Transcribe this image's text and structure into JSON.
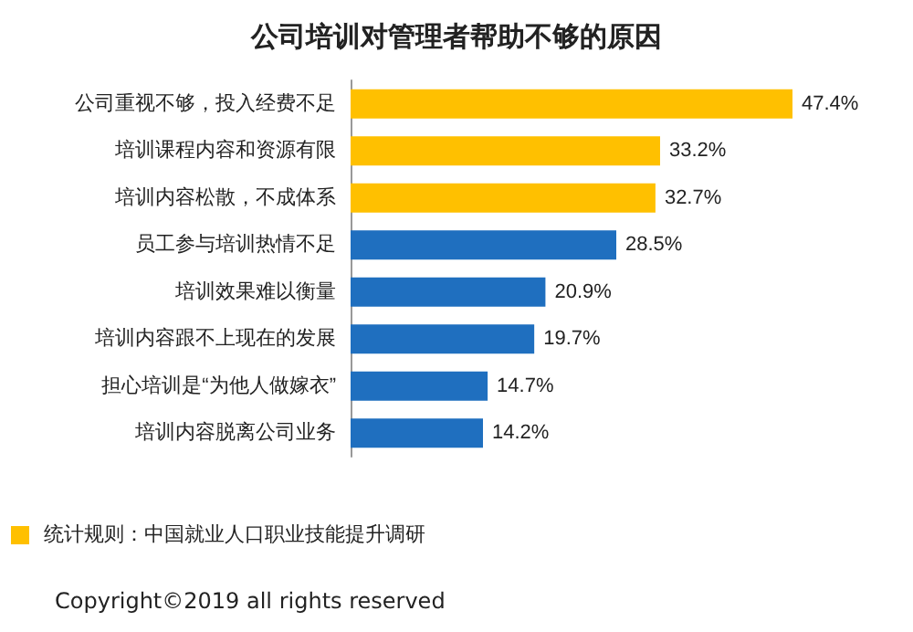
{
  "chart_data": {
    "type": "bar",
    "orientation": "horizontal",
    "title": "公司培训对管理者帮助不够的原因",
    "categories": [
      "公司重视不够，投入经费不足",
      "培训课程内容和资源有限",
      "培训内容松散，不成体系",
      "员工参与培训热情不足",
      "培训效果难以衡量",
      "培训内容跟不上现在的发展",
      "担心培训是“为他人做嫁衣”",
      "培训内容脱离公司业务"
    ],
    "values": [
      47.4,
      33.2,
      32.7,
      28.5,
      20.9,
      19.7,
      14.7,
      14.2
    ],
    "colors": [
      "#ffc000",
      "#ffc000",
      "#ffc000",
      "#1f6fbf",
      "#1f6fbf",
      "#1f6fbf",
      "#1f6fbf",
      "#1f6fbf"
    ],
    "value_labels": [
      "47.4%",
      "33.2%",
      "32.7%",
      "28.5%",
      "20.9%",
      "19.7%",
      "14.7%",
      "14.2%"
    ],
    "annotations": [
      "统计规则：中国就业人口职业技能提升调研",
      "Copyright©2019 all rights reserved"
    ],
    "grid": false
  }
}
